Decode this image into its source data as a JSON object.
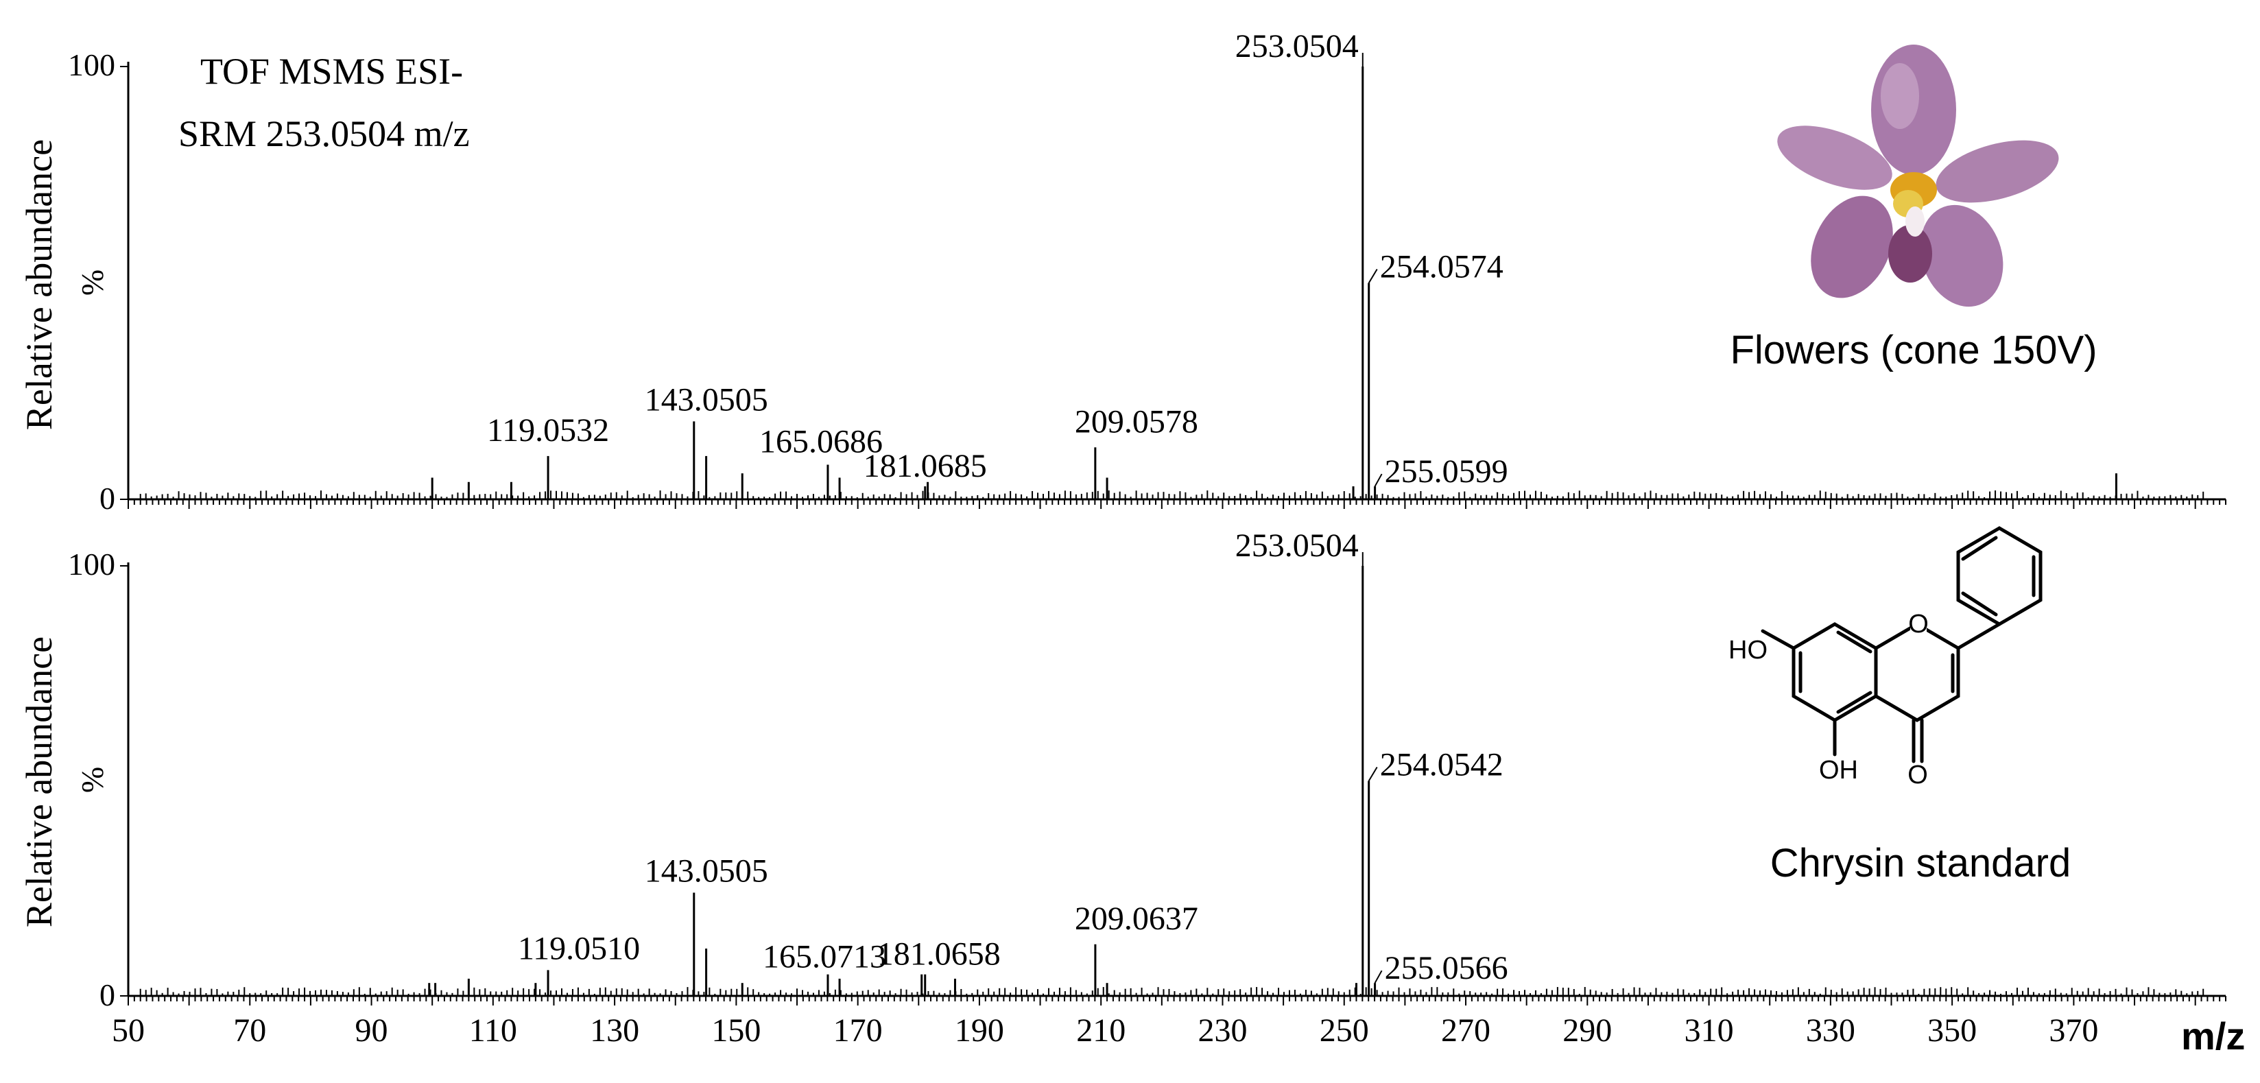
{
  "chart_data": [
    {
      "type": "bar",
      "panel": "top",
      "title": "TOF MSMS ESI-",
      "subtitle": "SRM 253.0504 m/z",
      "ylabel": "Relative abundance",
      "ylabel_unit": "%",
      "ytick_labels": [
        "100",
        "%",
        "0"
      ],
      "ylim": [
        0,
        100
      ],
      "xlim": [
        50,
        395
      ],
      "sample_label": "Flowers (cone 150V)",
      "sample_image_icon": "orchid-flower-icon",
      "peaks": [
        {
          "mz": 253.0504,
          "rel": 100,
          "label": "253.0504"
        },
        {
          "mz": 254.0574,
          "rel": 50,
          "label": "254.0574"
        },
        {
          "mz": 255.0599,
          "rel": 3,
          "label": "255.0599"
        },
        {
          "mz": 119.0532,
          "rel": 10,
          "label": "119.0532"
        },
        {
          "mz": 143.0505,
          "rel": 18,
          "label": "143.0505"
        },
        {
          "mz": 165.0686,
          "rel": 8,
          "label": "165.0686"
        },
        {
          "mz": 181.0685,
          "rel": 3,
          "label": "181.0685"
        },
        {
          "mz": 209.0578,
          "rel": 12,
          "label": "209.0578"
        },
        {
          "mz": 145.06,
          "rel": 10
        },
        {
          "mz": 100.0,
          "rel": 5
        },
        {
          "mz": 106.0,
          "rel": 4
        },
        {
          "mz": 113.0,
          "rel": 4
        },
        {
          "mz": 151.0,
          "rel": 6
        },
        {
          "mz": 167.0,
          "rel": 5
        },
        {
          "mz": 181.5,
          "rel": 4
        },
        {
          "mz": 211.0,
          "rel": 5
        },
        {
          "mz": 251.5,
          "rel": 3
        },
        {
          "mz": 377.0,
          "rel": 6
        }
      ]
    },
    {
      "type": "bar",
      "panel": "bottom",
      "ylabel": "Relative abundance",
      "ylabel_unit": "%",
      "ytick_labels": [
        "100",
        "%",
        "0"
      ],
      "ylim": [
        0,
        100
      ],
      "xlim": [
        50,
        395
      ],
      "xlabel": "m/z",
      "xtick_labels": [
        "50",
        "70",
        "90",
        "110",
        "130",
        "150",
        "170",
        "190",
        "210",
        "230",
        "250",
        "270",
        "290",
        "310",
        "330",
        "350",
        "370"
      ],
      "sample_label": "Chrysin standard",
      "structure_labels": [
        "HO",
        "O",
        "OH",
        "O"
      ],
      "peaks": [
        {
          "mz": 253.0504,
          "rel": 100,
          "label": "253.0504"
        },
        {
          "mz": 254.0542,
          "rel": 50,
          "label": "254.0542"
        },
        {
          "mz": 255.0566,
          "rel": 3,
          "label": "255.0566"
        },
        {
          "mz": 119.051,
          "rel": 6,
          "label": "119.0510"
        },
        {
          "mz": 143.0505,
          "rel": 24,
          "label": "143.0505"
        },
        {
          "mz": 165.0713,
          "rel": 5,
          "label": "165.0713"
        },
        {
          "mz": 181.0658,
          "rel": 5,
          "label": "181.0658"
        },
        {
          "mz": 209.0637,
          "rel": 12,
          "label": "209.0637"
        },
        {
          "mz": 145.06,
          "rel": 11
        },
        {
          "mz": 99.5,
          "rel": 3
        },
        {
          "mz": 100.5,
          "rel": 3
        },
        {
          "mz": 106.0,
          "rel": 4
        },
        {
          "mz": 117.0,
          "rel": 3
        },
        {
          "mz": 151.0,
          "rel": 3
        },
        {
          "mz": 167.0,
          "rel": 4
        },
        {
          "mz": 180.5,
          "rel": 5
        },
        {
          "mz": 186.0,
          "rel": 4
        },
        {
          "mz": 211.0,
          "rel": 3
        },
        {
          "mz": 252.0,
          "rel": 3
        }
      ]
    }
  ]
}
